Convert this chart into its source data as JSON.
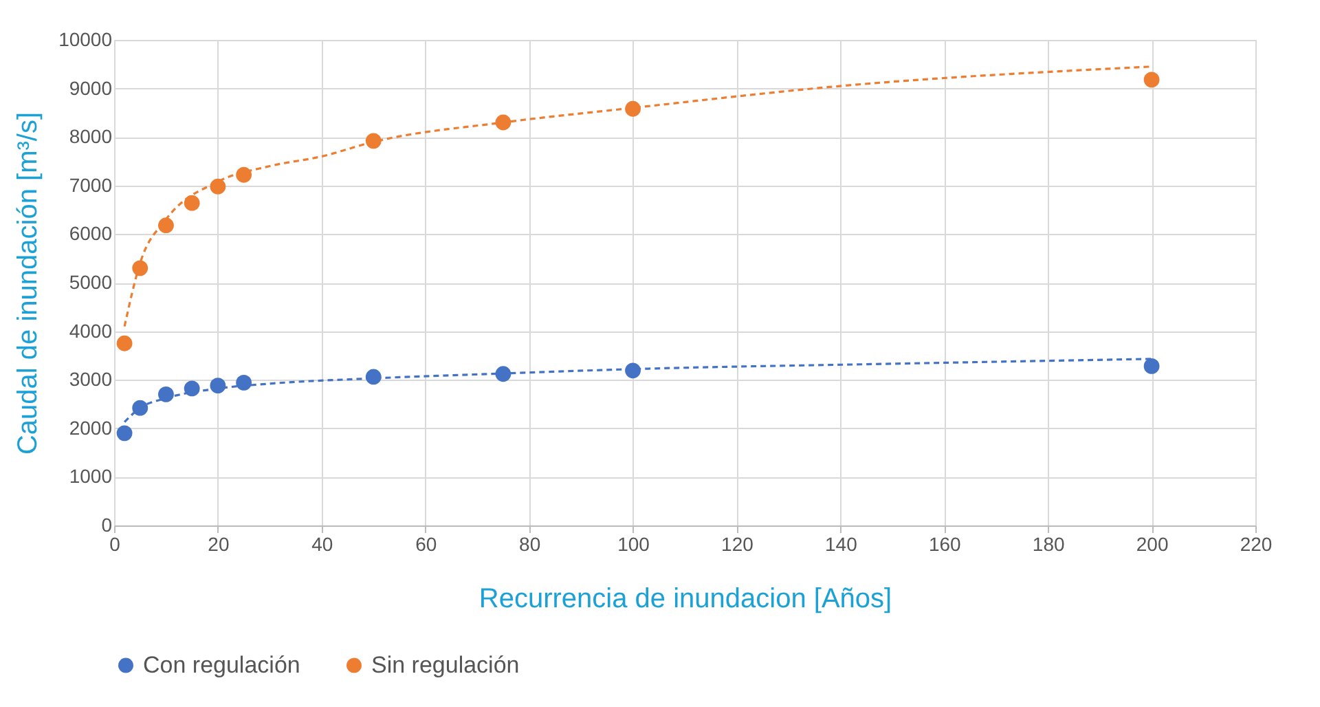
{
  "chart_data": {
    "type": "scatter",
    "xlabel": "Recurrencia de inundacion [Años]",
    "ylabel": "Caudal de inundación [m³/s]",
    "xlim": [
      0,
      220
    ],
    "xticks": [
      0,
      20,
      40,
      60,
      80,
      100,
      120,
      140,
      160,
      180,
      200,
      220
    ],
    "ylim": [
      0,
      10000
    ],
    "yticks": [
      0,
      1000,
      2000,
      3000,
      4000,
      5000,
      6000,
      7000,
      8000,
      9000,
      10000
    ],
    "grid": true,
    "legend": "bottom",
    "marker": "circle",
    "series": [
      {
        "name": "Con regulación",
        "color": "#4472c4",
        "x": [
          2,
          5,
          10,
          15,
          20,
          25,
          50,
          75,
          100,
          200
        ],
        "values": [
          1900,
          2420,
          2700,
          2820,
          2880,
          2940,
          3060,
          3120,
          3190,
          3280
        ]
      },
      {
        "name": "Sin regulación",
        "color": "#ed7d31",
        "x": [
          2,
          5,
          10,
          15,
          20,
          25,
          50,
          75,
          100,
          200
        ],
        "values": [
          3750,
          5300,
          6180,
          6640,
          6980,
          7220,
          7920,
          8300,
          8580,
          9180
        ]
      },
      {
        "color": "#4472c4",
        "type": "line",
        "line_style": "dashed",
        "marker": "none",
        "x": [
          2,
          5,
          10,
          20,
          30,
          50,
          75,
          100,
          150,
          200
        ],
        "values": [
          2130,
          2420,
          2620,
          2820,
          2920,
          3030,
          3130,
          3220,
          3330,
          3430
        ]
      },
      {
        "color": "#ed7d31",
        "type": "line",
        "line_style": "dashed",
        "marker": "none",
        "x": [
          2,
          5,
          10,
          20,
          30,
          40,
          50,
          75,
          100,
          140,
          200
        ],
        "values": [
          4100,
          5400,
          6300,
          7080,
          7400,
          7600,
          7900,
          8300,
          8600,
          9050,
          9450
        ]
      }
    ]
  }
}
